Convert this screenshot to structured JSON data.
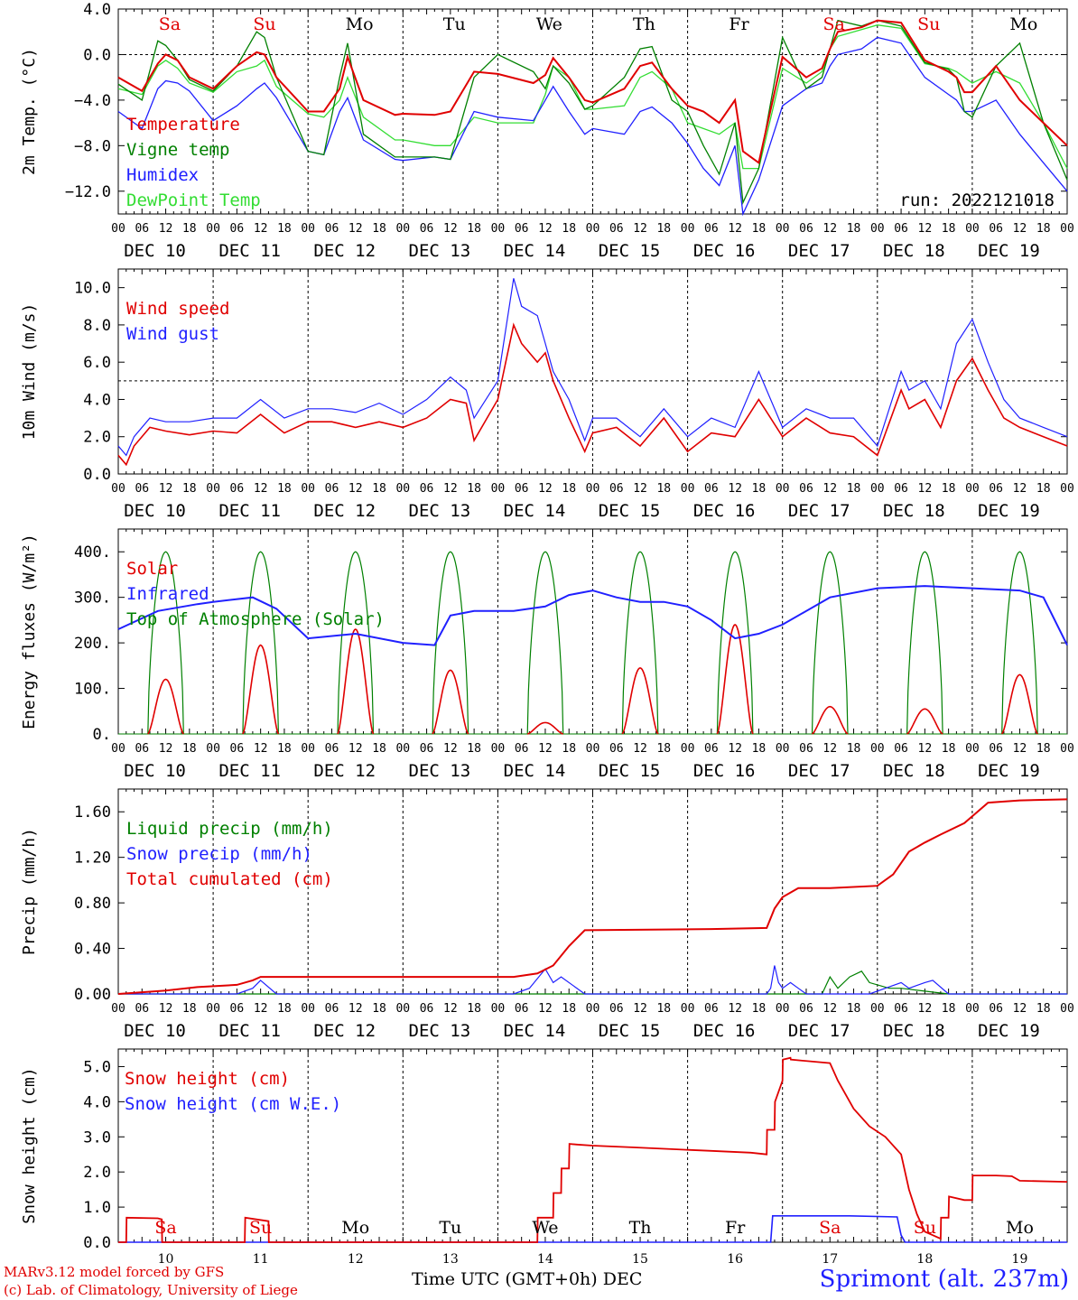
{
  "station": "Sprimont (alt. 237m)",
  "credit_line1": "MARv3.12 model forced by GFS",
  "credit_line2": "(c) Lab. of Climatology, University of Liege",
  "time_axis_label": "Time UTC (GMT+0h) DEC",
  "colors": {
    "red": "#e00000",
    "darkgreen": "#008000",
    "blue": "#2020ff",
    "lightgreen": "#33dd33"
  },
  "chart_data": [
    {
      "type": "line",
      "ylabel": "2m Temp. (°C)",
      "ylim": [
        -14,
        4
      ],
      "yticks": [
        "4.0",
        "0.0",
        "−4.0",
        "−8.0",
        "−12.0"
      ],
      "ytick_values": [
        4,
        0,
        -4,
        -8,
        -12
      ],
      "run_label": "run: 2022121018",
      "day_labels_top": [
        "Sa",
        "Su",
        "Mo",
        "Tu",
        "We",
        "Th",
        "Fr",
        "Sa",
        "Su",
        "Mo"
      ],
      "x_hours": [
        0,
        6,
        10,
        12,
        15,
        18,
        24,
        30,
        35,
        37,
        40,
        48,
        52,
        56,
        58,
        62,
        70,
        72,
        80,
        84,
        90,
        96,
        105,
        108,
        110,
        114,
        118,
        120,
        128,
        132,
        135,
        140,
        144,
        148,
        152,
        156,
        158,
        162,
        168,
        174,
        178,
        180,
        182,
        188,
        192,
        198,
        204,
        210,
        212,
        214,
        216,
        222,
        228,
        234,
        240
      ],
      "series": [
        {
          "name": "Temperature",
          "values": [
            -2,
            -3.2,
            -0.8,
            0,
            -0.5,
            -2,
            -3,
            -1,
            0.2,
            0,
            -2,
            -5,
            -5,
            -3,
            -0.2,
            -4,
            -5.3,
            -5.2,
            -5.3,
            -5,
            -1.5,
            -1.7,
            -2.5,
            -1.8,
            -0.3,
            -2,
            -4,
            -4.2,
            -3,
            -1,
            -0.7,
            -3,
            -4.5,
            -5,
            -6,
            -4,
            -8.5,
            -9.5,
            -0.2,
            -2,
            -1.2,
            0.5,
            2,
            2.4,
            3,
            2.8,
            -0.5,
            -1.5,
            -2,
            -3.3,
            -3.3,
            -1,
            -4,
            -6,
            -8
          ]
        },
        {
          "name": "Vigne temp",
          "values": [
            -2.6,
            -4,
            1.2,
            0.8,
            -0.5,
            -2.2,
            -3.2,
            -1,
            2,
            1.5,
            -2,
            -8.5,
            -8.8,
            -2,
            1,
            -7,
            -9,
            -9,
            -9,
            -9.2,
            -2,
            0,
            -1.5,
            -3,
            -1,
            -2.5,
            -4.8,
            -4.5,
            -2,
            0.5,
            0.7,
            -4,
            -5,
            -8,
            -10.5,
            -6,
            -13,
            -10,
            1.5,
            -3,
            -2,
            0.5,
            3,
            2.5,
            3,
            2.5,
            -0.7,
            -1.3,
            -2,
            -5,
            -5.5,
            -1,
            1,
            -6,
            -11
          ]
        },
        {
          "name": "Humidex",
          "values": [
            -5,
            -6.5,
            -3,
            -2.3,
            -2.5,
            -3.2,
            -5.8,
            -4.5,
            -3,
            -2.5,
            -3.8,
            -8.5,
            -8.8,
            -5,
            -3.8,
            -7.5,
            -9.2,
            -9.3,
            -9,
            -9.2,
            -5,
            -5.5,
            -5.8,
            -4,
            -2.8,
            -5,
            -7,
            -6.5,
            -7,
            -5,
            -4.6,
            -6,
            -7.8,
            -10,
            -11.5,
            -8,
            -14,
            -11,
            -4.5,
            -3,
            -2.5,
            -1,
            0,
            0.5,
            1.5,
            1,
            -2,
            -3.5,
            -4,
            -5,
            -5,
            -4,
            -7,
            -9.5,
            -12
          ]
        },
        {
          "name": "DewPoint Temp",
          "values": [
            -3,
            -3.5,
            -1,
            -0.5,
            -1.2,
            -2.5,
            -3.3,
            -1.5,
            -1,
            -0.5,
            -2.8,
            -5.2,
            -5.5,
            -4,
            -2,
            -5.5,
            -7.5,
            -7.5,
            -8,
            -8,
            -5.5,
            -6,
            -6,
            -3.5,
            -1,
            -2,
            -4.8,
            -4.8,
            -4.5,
            -2,
            -1.5,
            -3,
            -6,
            -6.5,
            -7,
            -6,
            -10,
            -10,
            -1.2,
            -2.5,
            -1.5,
            0.5,
            1.6,
            2.2,
            2.6,
            2.3,
            -0.8,
            -1.2,
            -1.5,
            -2,
            -2.5,
            -1.5,
            -2.5,
            -6,
            -10
          ]
        }
      ]
    },
    {
      "type": "line",
      "ylabel": "10m Wind (m/s)",
      "ylim": [
        0,
        11
      ],
      "yticks": [
        "0.0",
        "2.0",
        "4.0",
        "6.0",
        "8.0",
        "10.0"
      ],
      "ytick_values": [
        0,
        2,
        4,
        6,
        8,
        10
      ],
      "reference_line": 5,
      "x_hours": [
        0,
        2,
        4,
        8,
        12,
        18,
        24,
        30,
        36,
        42,
        48,
        54,
        60,
        66,
        72,
        78,
        84,
        88,
        90,
        96,
        100,
        102,
        106,
        108,
        110,
        114,
        118,
        120,
        126,
        132,
        138,
        144,
        150,
        156,
        162,
        168,
        174,
        180,
        186,
        192,
        198,
        200,
        204,
        208,
        212,
        216,
        220,
        224,
        228,
        234,
        240
      ],
      "series": [
        {
          "name": "Wind speed",
          "values": [
            1,
            0.5,
            1.5,
            2.5,
            2.3,
            2.1,
            2.3,
            2.2,
            3.2,
            2.2,
            2.8,
            2.8,
            2.5,
            2.8,
            2.5,
            3,
            4,
            3.8,
            1.8,
            4,
            8,
            7,
            6,
            6.5,
            5,
            3,
            1.2,
            2.2,
            2.5,
            1.5,
            3,
            1.2,
            2.2,
            2,
            4,
            2,
            3,
            2.2,
            2,
            1,
            4.5,
            3.5,
            4,
            2.5,
            5,
            6.2,
            4.5,
            3,
            2.5,
            2,
            1.5
          ]
        },
        {
          "name": "Wind gust",
          "values": [
            1.5,
            1,
            2,
            3,
            2.8,
            2.8,
            3,
            3,
            4,
            3,
            3.5,
            3.5,
            3.3,
            3.8,
            3.2,
            4,
            5.2,
            4.5,
            3,
            5,
            10.5,
            9,
            8.5,
            7,
            5.5,
            4,
            1.8,
            3,
            3,
            2,
            3.5,
            2,
            3,
            2.5,
            5.5,
            2.5,
            3.5,
            3,
            3,
            1.5,
            5.5,
            4.5,
            5,
            3.5,
            7,
            8.3,
            6,
            4,
            3,
            2.5,
            2
          ]
        }
      ]
    },
    {
      "type": "line",
      "ylabel": "Energy fluxes (W/m²)",
      "ylim": [
        0,
        450
      ],
      "yticks": [
        "0.",
        "100.",
        "200.",
        "300.",
        "400."
      ],
      "ytick_values": [
        0,
        100,
        200,
        300,
        400
      ],
      "solar_peaks": [
        120,
        195,
        230,
        140,
        25,
        145,
        240,
        60,
        55,
        130
      ],
      "toa_peak": 400,
      "infrared_x_hours": [
        0,
        10,
        20,
        24,
        34,
        40,
        48,
        60,
        72,
        80,
        84,
        90,
        100,
        108,
        114,
        120,
        126,
        132,
        138,
        144,
        150,
        156,
        162,
        168,
        180,
        192,
        204,
        216,
        228,
        234,
        240
      ],
      "series": [
        {
          "name": "Solar",
          "values": [
            120,
            195,
            230,
            140,
            25,
            145,
            240,
            60,
            55,
            130
          ]
        },
        {
          "name": "Infrared",
          "values": [
            230,
            270,
            285,
            290,
            300,
            275,
            210,
            220,
            200,
            195,
            260,
            270,
            270,
            280,
            305,
            315,
            300,
            290,
            290,
            280,
            250,
            210,
            220,
            240,
            300,
            320,
            325,
            320,
            315,
            300,
            195
          ]
        },
        {
          "name": "Top of Atmosphere (Solar)",
          "values": [
            400,
            400,
            400,
            400,
            400,
            400,
            400,
            400,
            400,
            400
          ]
        }
      ]
    },
    {
      "type": "line",
      "ylabel": "Precip (mm/h)",
      "ylim": [
        0,
        1.8
      ],
      "yticks": [
        "0.00",
        "0.40",
        "0.80",
        "1.20",
        "1.60"
      ],
      "ytick_values": [
        0,
        0.4,
        0.8,
        1.2,
        1.6
      ],
      "series": [
        {
          "name": "Liquid precip (mm/h)",
          "x": [
            0,
            178,
            180,
            182,
            185,
            188,
            190,
            195,
            198,
            210,
            240
          ],
          "values": [
            0,
            0,
            0.15,
            0.05,
            0.15,
            0.2,
            0.1,
            0.05,
            0.05,
            0,
            0
          ]
        },
        {
          "name": "Snow precip (mm/h)",
          "x": [
            0,
            30,
            34,
            36,
            40,
            100,
            104,
            108,
            110,
            112,
            118,
            164,
            165,
            166,
            167,
            168,
            170,
            172,
            174,
            190,
            194,
            198,
            200,
            204,
            206,
            210,
            240
          ],
          "values": [
            0,
            0,
            0.05,
            0.12,
            0,
            0,
            0.05,
            0.22,
            0.1,
            0.15,
            0,
            0,
            0.05,
            0.25,
            0.1,
            0.05,
            0.1,
            0.05,
            0,
            0,
            0.05,
            0.1,
            0.05,
            0.1,
            0.12,
            0,
            0
          ]
        },
        {
          "name": "Total cumulated (cm)",
          "x": [
            0,
            12,
            20,
            30,
            34,
            36,
            40,
            80,
            100,
            106,
            110,
            114,
            118,
            150,
            164,
            166,
            168,
            172,
            180,
            192,
            196,
            200,
            204,
            208,
            214,
            220,
            228,
            240
          ],
          "values": [
            0,
            0.03,
            0.06,
            0.08,
            0.12,
            0.15,
            0.15,
            0.15,
            0.15,
            0.18,
            0.25,
            0.42,
            0.56,
            0.57,
            0.58,
            0.75,
            0.85,
            0.93,
            0.93,
            0.95,
            1.05,
            1.25,
            1.33,
            1.4,
            1.5,
            1.68,
            1.7,
            1.71
          ]
        }
      ]
    },
    {
      "type": "line",
      "ylabel": "Snow height (cm)",
      "ylim": [
        0,
        5.5
      ],
      "yticks": [
        "0.0",
        "1.0",
        "2.0",
        "3.0",
        "4.0",
        "5.0"
      ],
      "ytick_values": [
        0,
        1,
        2,
        3,
        4,
        5
      ],
      "day_labels_bottom": [
        "Sa",
        "Su",
        "Mo",
        "Tu",
        "We",
        "Th",
        "Fr",
        "Sa",
        "Su",
        "Mo"
      ],
      "day_numbers": [
        "10",
        "11",
        "12",
        "13",
        "14",
        "15",
        "16",
        "17",
        "18",
        "19"
      ],
      "series": [
        {
          "name": "Snow height (cm)",
          "x": [
            0,
            2,
            2.1,
            10,
            11,
            11.1,
            32,
            32.1,
            38,
            38.1,
            106,
            106.1,
            110,
            110.1,
            112,
            112.1,
            114,
            114.1,
            116,
            120,
            130,
            140,
            150,
            160,
            164,
            164.1,
            166,
            166.1,
            168,
            168.1,
            170,
            170.1,
            180,
            182,
            186,
            190,
            194,
            198,
            200,
            202,
            204,
            206,
            208,
            208.1,
            210,
            210.1,
            214,
            216,
            216.1,
            222,
            226,
            228,
            240
          ],
          "values": [
            0,
            0,
            0.7,
            0.68,
            0.65,
            0,
            0,
            0.7,
            0.6,
            0,
            0,
            0.7,
            0.7,
            1.4,
            1.4,
            2.1,
            2.1,
            2.8,
            2.78,
            2.75,
            2.7,
            2.65,
            2.6,
            2.55,
            2.5,
            3.2,
            3.2,
            4.0,
            4.6,
            5.2,
            5.25,
            5.2,
            5.1,
            4.6,
            3.8,
            3.3,
            3.0,
            2.5,
            1.5,
            0.8,
            0.3,
            0.2,
            0.1,
            0.7,
            0.7,
            1.3,
            1.2,
            1.2,
            1.9,
            1.9,
            1.88,
            1.75,
            1.72
          ]
        },
        {
          "name": "Snow height (cm W.E.)",
          "x": [
            0,
            165,
            165.5,
            185,
            197,
            198,
            199,
            240
          ],
          "values": [
            0,
            0,
            0.75,
            0.75,
            0.72,
            0.2,
            0,
            0
          ]
        }
      ]
    }
  ]
}
